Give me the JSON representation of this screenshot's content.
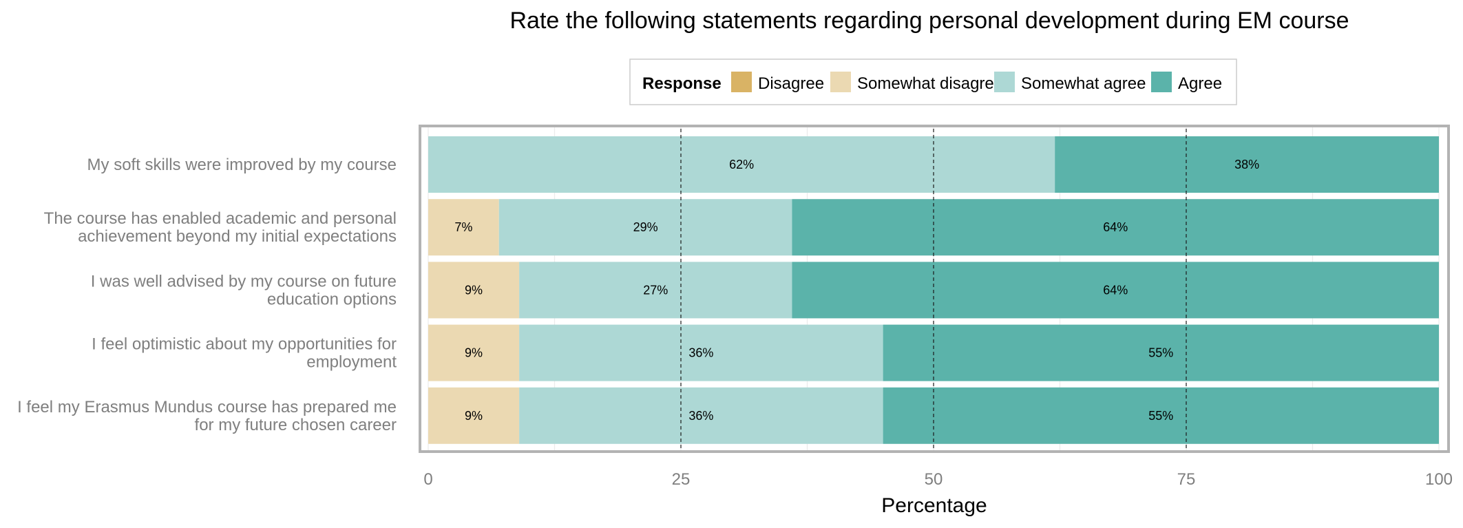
{
  "chart_data": {
    "type": "bar",
    "orientation": "horizontal",
    "stacked": true,
    "title": "Rate the following statements regarding personal development during EM course",
    "xlabel": "Percentage",
    "ylabel": "",
    "xlim": [
      0,
      100
    ],
    "x_ticks": [
      0,
      25,
      50,
      75,
      100
    ],
    "x_tick_labels": [
      "0",
      "25",
      "50",
      "75",
      "100"
    ],
    "reference_lines": [
      25,
      50,
      75
    ],
    "grid": true,
    "legend": {
      "title": "Response",
      "placement": "top-center"
    },
    "categories": [
      [
        "My soft skills were improved by my course"
      ],
      [
        "The course has enabled academic and personal",
        "achievement beyond my initial expectations"
      ],
      [
        "I was well advised by my course on future",
        "education options"
      ],
      [
        "I feel optimistic about my opportunities for",
        "employment"
      ],
      [
        "I feel my Erasmus Mundus course has prepared me",
        "for my future chosen career"
      ]
    ],
    "series": [
      {
        "name": "Disagree",
        "color": "#d9b365",
        "values": [
          0,
          0,
          0,
          0,
          0
        ],
        "labels": [
          "",
          "",
          "",
          "",
          ""
        ]
      },
      {
        "name": "Somewhat disagree",
        "color": "#ebd9b2",
        "values": [
          0,
          7,
          9,
          9,
          9
        ],
        "labels": [
          "",
          "7%",
          "9%",
          "9%",
          "9%"
        ]
      },
      {
        "name": "Somewhat agree",
        "color": "#add8d5",
        "values": [
          62,
          29,
          27,
          36,
          36
        ],
        "labels": [
          "62%",
          "29%",
          "27%",
          "36%",
          "36%"
        ]
      },
      {
        "name": "Agree",
        "color": "#5bb3aa",
        "values": [
          38,
          64,
          64,
          55,
          55
        ],
        "labels": [
          "38%",
          "64%",
          "64%",
          "55%",
          "55%"
        ]
      }
    ]
  }
}
